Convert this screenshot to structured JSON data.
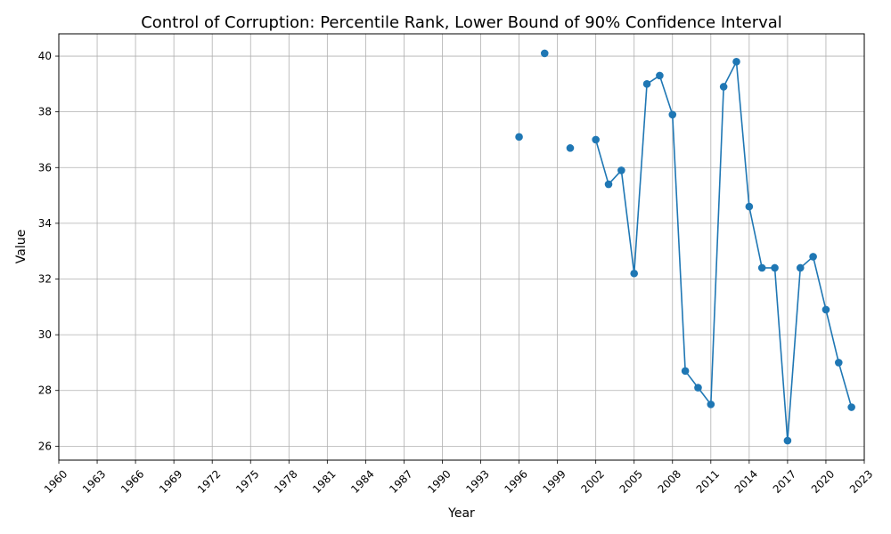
{
  "chart_data": {
    "type": "line",
    "title": "Control of Corruption: Percentile Rank, Lower Bound of 90% Confidence Interval",
    "xlabel": "Year",
    "ylabel": "Value",
    "xlim": [
      1960,
      2023
    ],
    "ylim": [
      25.5,
      40.8
    ],
    "xticks": [
      1960,
      1963,
      1966,
      1969,
      1972,
      1975,
      1978,
      1981,
      1984,
      1987,
      1990,
      1993,
      1996,
      1999,
      2002,
      2005,
      2008,
      2011,
      2014,
      2017,
      2020,
      2023
    ],
    "yticks": [
      26,
      28,
      30,
      32,
      34,
      36,
      38,
      40
    ],
    "grid": true,
    "line_color": "#1f77b4",
    "series": [
      {
        "x": [
          1996,
          1998,
          2000,
          2002,
          2003,
          2004,
          2005,
          2006,
          2007,
          2008,
          2009,
          2010,
          2011,
          2012,
          2013,
          2014,
          2015,
          2016,
          2017,
          2018,
          2019,
          2020,
          2021,
          2022
        ],
        "y": [
          37.1,
          40.1,
          36.7,
          37.0,
          35.4,
          35.9,
          32.2,
          39.0,
          39.3,
          37.9,
          28.7,
          28.1,
          27.5,
          38.9,
          39.8,
          34.6,
          32.4,
          32.4,
          26.2,
          32.4,
          32.8,
          30.9,
          29.0,
          27.4
        ],
        "connected_pairs": [
          [
            2002,
            2003
          ],
          [
            2003,
            2004
          ],
          [
            2004,
            2005
          ],
          [
            2005,
            2006
          ],
          [
            2006,
            2007
          ],
          [
            2007,
            2008
          ],
          [
            2008,
            2009
          ],
          [
            2009,
            2010
          ],
          [
            2010,
            2011
          ],
          [
            2011,
            2012
          ],
          [
            2012,
            2013
          ],
          [
            2013,
            2014
          ],
          [
            2014,
            2015
          ],
          [
            2015,
            2016
          ],
          [
            2016,
            2017
          ],
          [
            2017,
            2018
          ],
          [
            2018,
            2019
          ],
          [
            2019,
            2020
          ],
          [
            2020,
            2021
          ],
          [
            2021,
            2022
          ]
        ]
      }
    ]
  }
}
